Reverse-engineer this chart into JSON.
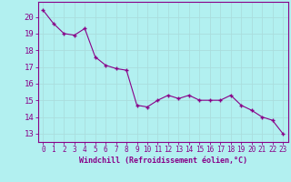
{
  "x": [
    0,
    1,
    2,
    3,
    4,
    5,
    6,
    7,
    8,
    9,
    10,
    11,
    12,
    13,
    14,
    15,
    16,
    17,
    18,
    19,
    20,
    21,
    22,
    23
  ],
  "y": [
    20.4,
    19.6,
    19.0,
    18.9,
    19.3,
    17.6,
    17.1,
    16.9,
    16.8,
    14.7,
    14.6,
    15.0,
    15.3,
    15.1,
    15.3,
    15.0,
    15.0,
    15.0,
    15.3,
    14.7,
    14.4,
    14.0,
    13.8,
    13.0
  ],
  "line_color": "#880088",
  "marker": "+",
  "marker_color": "#880088",
  "bg_color": "#b2f0f0",
  "grid_color": "#cceeee",
  "tick_color": "#880088",
  "label_color": "#880088",
  "xlabel": "Windchill (Refroidissement éolien,°C)",
  "ylabel": "",
  "ylim": [
    12.5,
    20.9
  ],
  "xlim": [
    -0.5,
    23.5
  ],
  "yticks": [
    13,
    14,
    15,
    16,
    17,
    18,
    19,
    20
  ],
  "xticks": [
    0,
    1,
    2,
    3,
    4,
    5,
    6,
    7,
    8,
    9,
    10,
    11,
    12,
    13,
    14,
    15,
    16,
    17,
    18,
    19,
    20,
    21,
    22,
    23
  ]
}
